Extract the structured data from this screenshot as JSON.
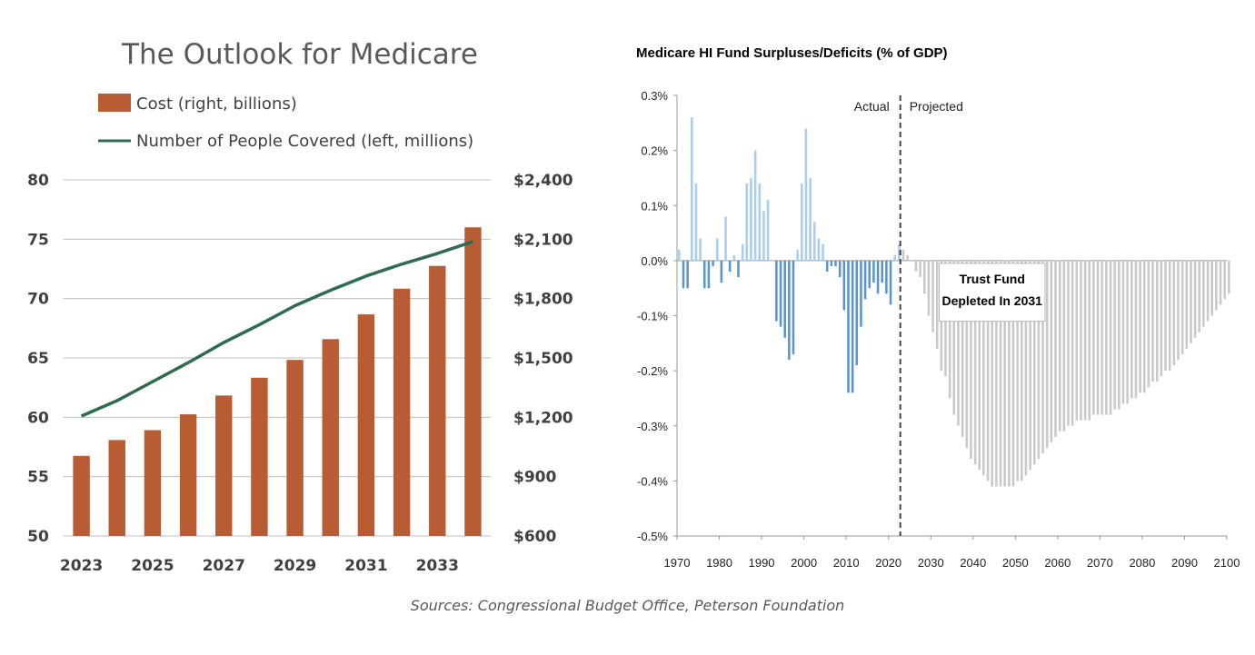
{
  "source_note": "Sources: Congressional Budget Office, Peterson Foundation",
  "colors": {
    "bar_cost": "#b85c33",
    "line_people": "#2e6b50",
    "bar_actual_pos": "#a9cdee",
    "bar_actual_neg": "#5b95cc",
    "bar_projected": "#c9c9c9",
    "axis": "#bfbfbf"
  },
  "chart_data": [
    {
      "type": "bar+line",
      "title": "The Outlook for Medicare",
      "legend_position": "top-left",
      "categories": [
        "2023",
        "2024",
        "2025",
        "2026",
        "2027",
        "2028",
        "2029",
        "2030",
        "2031",
        "2032",
        "2033",
        "2034"
      ],
      "x_tick_labels": [
        "2023",
        "2025",
        "2027",
        "2029",
        "2031",
        "2033"
      ],
      "series": [
        {
          "name": "Cost (right, billions)",
          "type": "bar",
          "axis": "right",
          "values": [
            1005,
            1085,
            1135,
            1215,
            1310,
            1400,
            1490,
            1595,
            1720,
            1850,
            1965,
            2160
          ]
        },
        {
          "name": "Number of People Covered (left, millions)",
          "type": "line",
          "axis": "left",
          "values": [
            60.1,
            61.4,
            63.0,
            64.6,
            66.3,
            67.8,
            69.4,
            70.7,
            71.9,
            72.9,
            73.8,
            74.8
          ]
        }
      ],
      "y_left": {
        "ylim": [
          50,
          80
        ],
        "ticks": [
          "50",
          "55",
          "60",
          "65",
          "70",
          "75",
          "80"
        ]
      },
      "y_right": {
        "ylim": [
          600,
          2400
        ],
        "ticks": [
          "$600",
          "$900",
          "$1,200",
          "$1,500",
          "$1,800",
          "$2,100",
          "$2,400"
        ]
      },
      "grid": true
    },
    {
      "type": "bar",
      "title": "Medicare HI Fund Surpluses/Deficits (% of GDP)",
      "x_tick_labels": [
        "1970",
        "1980",
        "1990",
        "2000",
        "2010",
        "2020",
        "2030",
        "2040",
        "2050",
        "2060",
        "2070",
        "2080",
        "2090",
        "2100"
      ],
      "xlim": [
        1970,
        2100
      ],
      "ylim": [
        -0.5,
        0.3
      ],
      "y_tick_labels": [
        "0.3%",
        "0.2%",
        "0.1%",
        "0.0%",
        "-0.1%",
        "-0.2%",
        "-0.3%",
        "-0.4%",
        "-0.5%"
      ],
      "divider_year": 2022,
      "actual_label": "Actual",
      "projected_label": "Projected",
      "annotation": {
        "line1": "Trust Fund",
        "line2": "Depleted In 2031"
      },
      "grid": false,
      "actual": {
        "start_year": 1970,
        "values": [
          0.02,
          -0.05,
          -0.05,
          0.26,
          0.14,
          0.04,
          -0.05,
          -0.05,
          -0.01,
          0.04,
          -0.04,
          0.08,
          -0.02,
          0.01,
          -0.03,
          0.03,
          0.14,
          0.15,
          0.2,
          0.14,
          0.09,
          0.11,
          0.0,
          -0.11,
          -0.12,
          -0.14,
          -0.18,
          -0.17,
          0.02,
          0.14,
          0.24,
          0.15,
          0.07,
          0.04,
          0.03,
          -0.02,
          -0.01,
          -0.01,
          -0.03,
          -0.09,
          -0.24,
          -0.24,
          -0.19,
          -0.12,
          -0.07,
          -0.05,
          -0.04,
          -0.06,
          -0.04,
          -0.06,
          -0.08,
          0.01,
          0.03
        ]
      },
      "projected": {
        "start_year": 2023,
        "values": [
          0.02,
          0.01,
          0.0,
          -0.02,
          -0.03,
          -0.06,
          -0.1,
          -0.13,
          -0.16,
          -0.2,
          -0.21,
          -0.25,
          -0.28,
          -0.3,
          -0.32,
          -0.34,
          -0.36,
          -0.37,
          -0.38,
          -0.39,
          -0.4,
          -0.41,
          -0.41,
          -0.41,
          -0.41,
          -0.41,
          -0.41,
          -0.4,
          -0.4,
          -0.39,
          -0.38,
          -0.37,
          -0.36,
          -0.35,
          -0.34,
          -0.33,
          -0.32,
          -0.31,
          -0.31,
          -0.3,
          -0.3,
          -0.29,
          -0.29,
          -0.29,
          -0.29,
          -0.28,
          -0.28,
          -0.28,
          -0.28,
          -0.28,
          -0.27,
          -0.27,
          -0.26,
          -0.26,
          -0.25,
          -0.25,
          -0.24,
          -0.24,
          -0.23,
          -0.22,
          -0.22,
          -0.21,
          -0.2,
          -0.2,
          -0.19,
          -0.18,
          -0.17,
          -0.16,
          -0.15,
          -0.14,
          -0.13,
          -0.12,
          -0.11,
          -0.1,
          -0.09,
          -0.08,
          -0.07,
          -0.06
        ]
      }
    }
  ]
}
